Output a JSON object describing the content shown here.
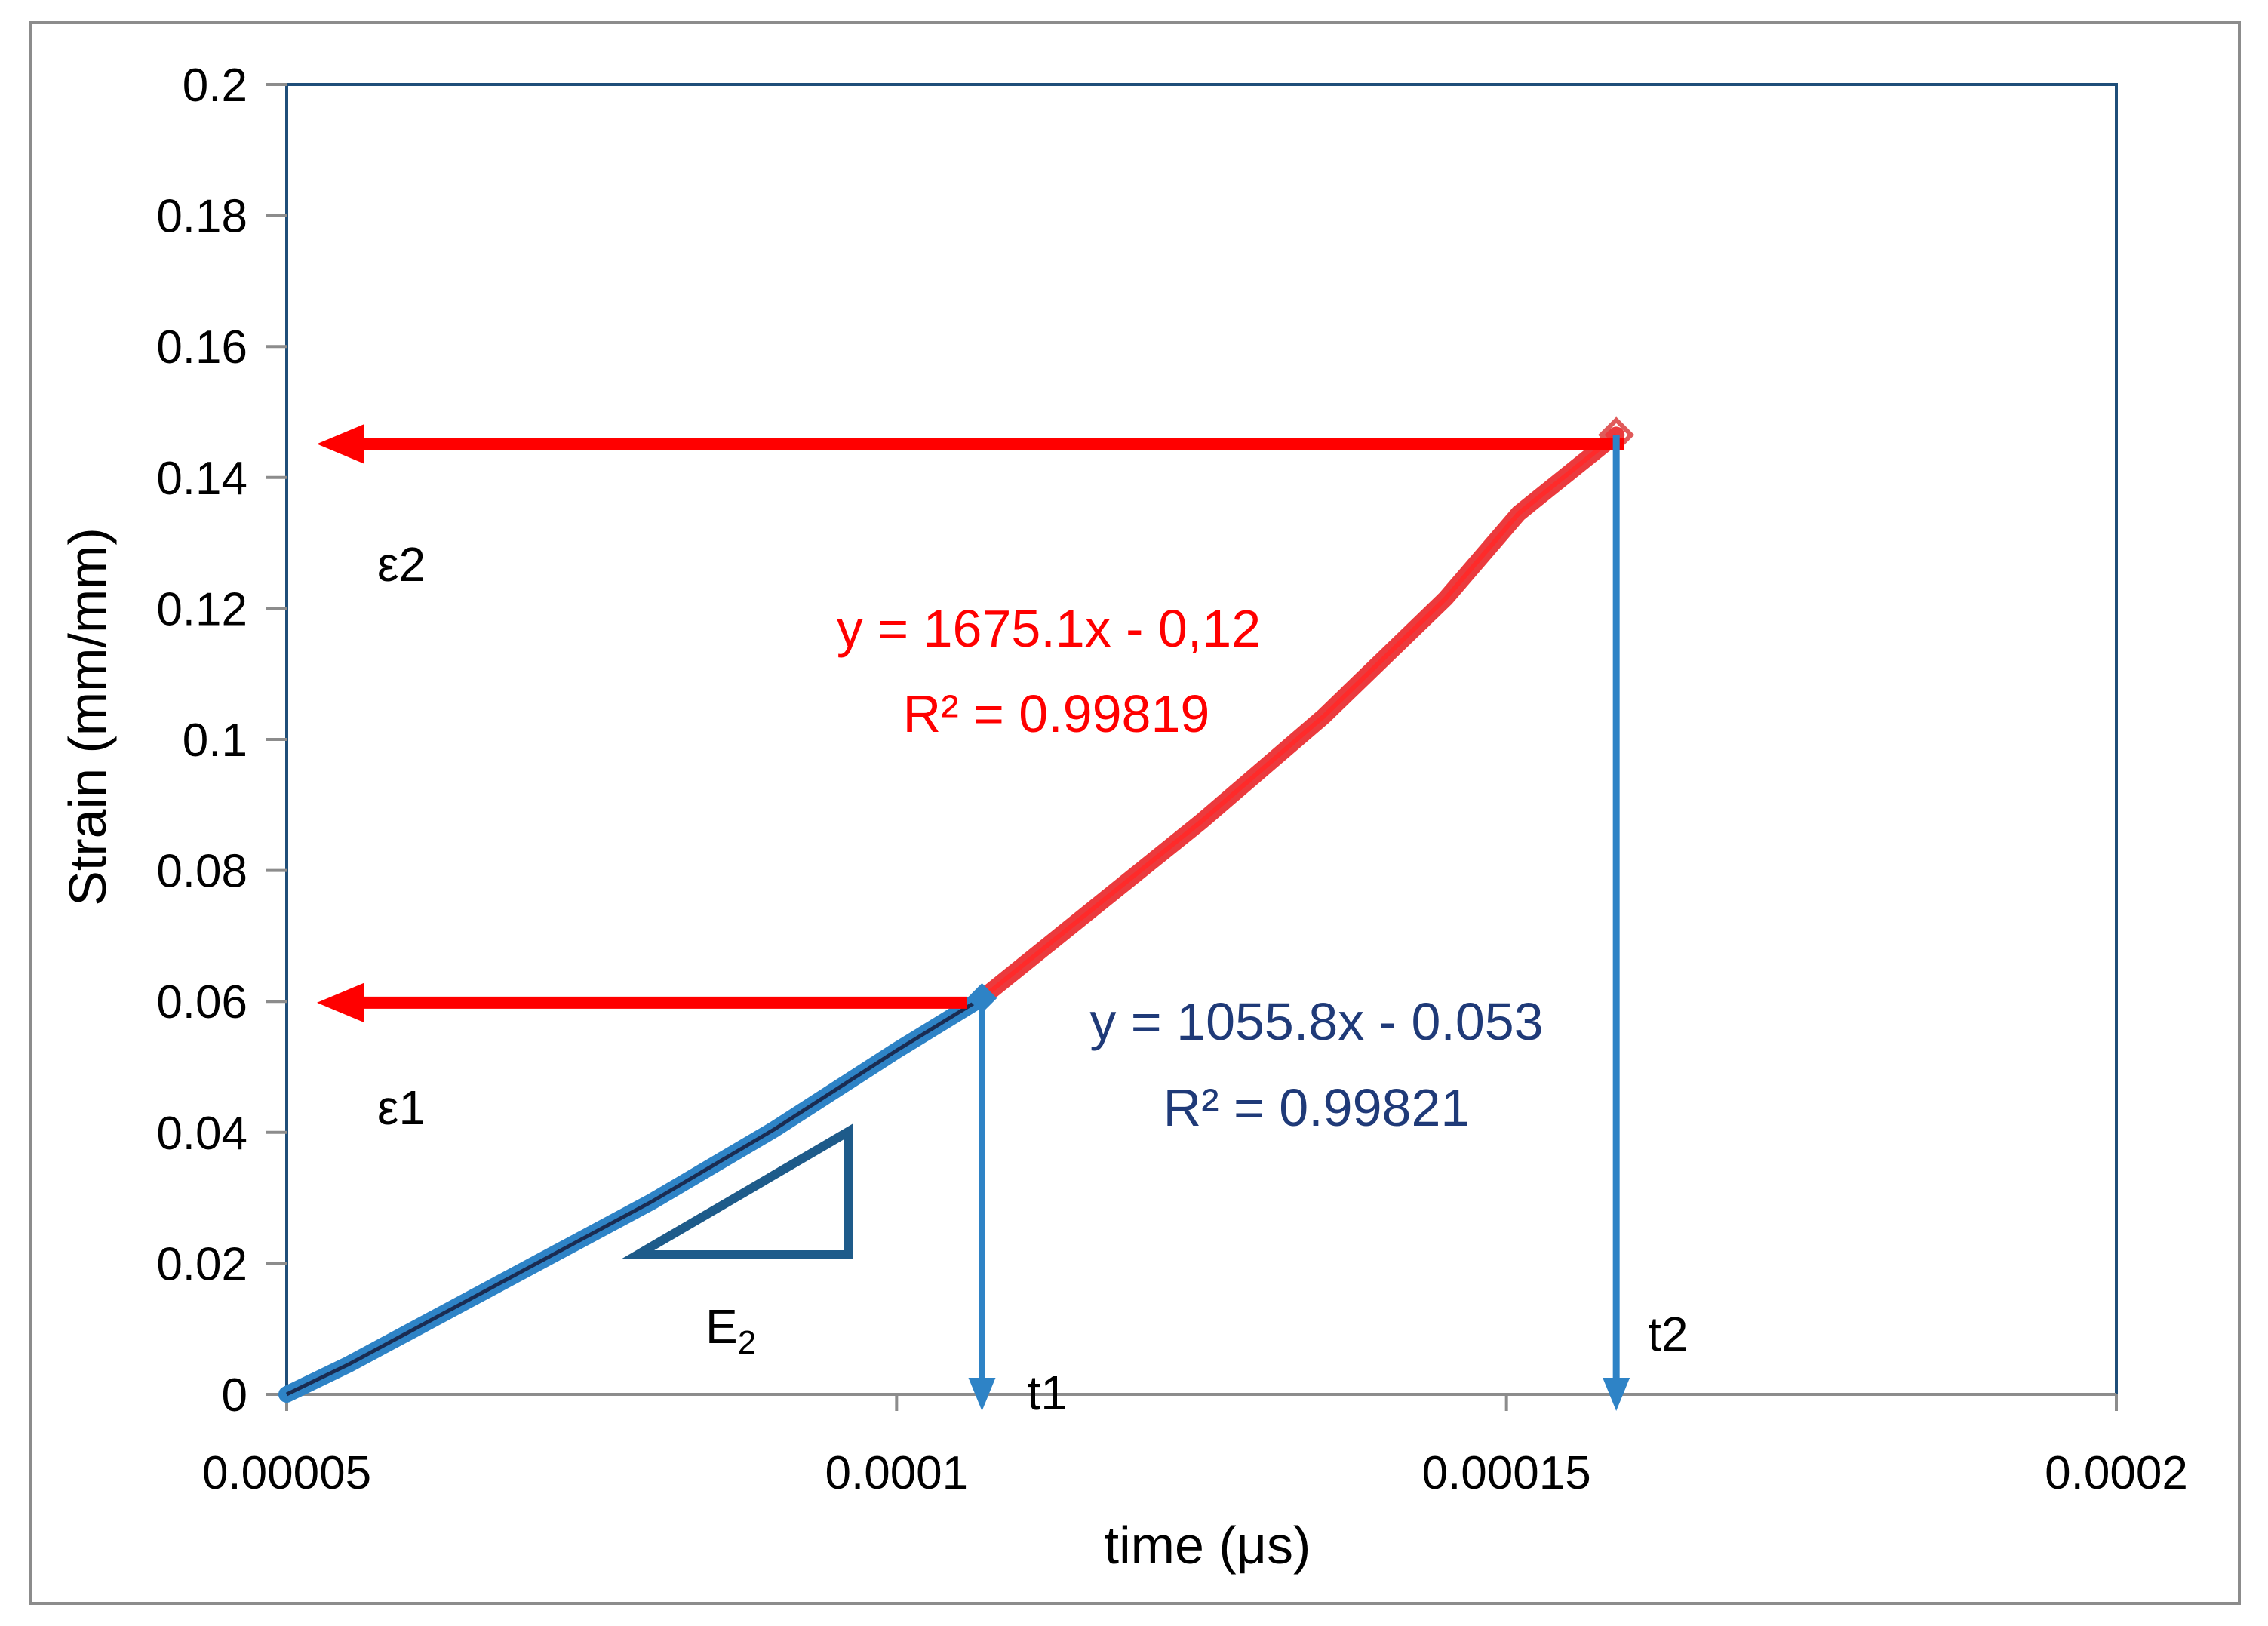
{
  "chart_data": {
    "type": "line",
    "title": "",
    "xlabel": "time (μs)",
    "ylabel": "Strain (mm/mm)",
    "xlim": [
      5e-05,
      0.0002
    ],
    "ylim": [
      0,
      0.2
    ],
    "x_ticks": [
      5e-05,
      0.0001,
      0.00015,
      0.0002
    ],
    "x_tick_labels": [
      "0.00005",
      "0.0001",
      "0.00015",
      "0.0002"
    ],
    "y_ticks": [
      0,
      0.02,
      0.04,
      0.06,
      0.08,
      0.1,
      0.12,
      0.14,
      0.16,
      0.18,
      0.2
    ],
    "y_tick_labels": [
      "0",
      "0.02",
      "0.04",
      "0.06",
      "0.08",
      "0.1",
      "0.12",
      "0.14",
      "0.16",
      "0.18",
      "0.2"
    ],
    "grid": false,
    "colors": {
      "series1": "#2e83c6",
      "series1_fit": "#1a2c52",
      "series2": "#e8171b",
      "drop_lines": "#2e83c6",
      "arrows": "#ff0000",
      "eq1_text": "#1f3a78",
      "eq2_text": "#ff0000",
      "triangle": "#1e5b8a",
      "plot_border": "#1f4e79"
    },
    "series": [
      {
        "values": [
          {
            "x": 5e-05,
            "y": 0.0
          },
          {
            "x": 5.5e-05,
            "y": 0.0045
          },
          {
            "x": 6e-05,
            "y": 0.0095
          },
          {
            "x": 6.5e-05,
            "y": 0.0145
          },
          {
            "x": 7e-05,
            "y": 0.0195
          },
          {
            "x": 7.5e-05,
            "y": 0.0245
          },
          {
            "x": 8e-05,
            "y": 0.0295
          },
          {
            "x": 8.5e-05,
            "y": 0.035
          },
          {
            "x": 9e-05,
            "y": 0.0405
          },
          {
            "x": 9.5e-05,
            "y": 0.0465
          },
          {
            "x": 0.0001,
            "y": 0.0525
          },
          {
            "x": 0.000107,
            "y": 0.0605
          }
        ]
      },
      {
        "values": [
          {
            "x": 0.000107,
            "y": 0.0605
          },
          {
            "x": 0.000115,
            "y": 0.0725
          },
          {
            "x": 0.000125,
            "y": 0.0875
          },
          {
            "x": 0.000135,
            "y": 0.1035
          },
          {
            "x": 0.000145,
            "y": 0.1215
          },
          {
            "x": 0.000151,
            "y": 0.1345
          },
          {
            "x": 0.000159,
            "y": 0.1465
          }
        ]
      }
    ],
    "equations": {
      "fit2": {
        "line1": "y = 1675.1x - 0,12",
        "line2": "R² = 0.99819"
      },
      "fit1": {
        "line1": "y = 1055.8x - 0.053",
        "line2": "R² = 0.99821"
      }
    },
    "markers": {
      "eps1": {
        "label": "ε1",
        "y": 0.0605
      },
      "eps2": {
        "label": "ε2",
        "y": 0.1465
      },
      "t1": {
        "label": "t1",
        "x": 0.000107
      },
      "t2": {
        "label": "t2",
        "x": 0.000159
      },
      "slope_label": {
        "base": "E",
        "sub": "2"
      }
    }
  }
}
